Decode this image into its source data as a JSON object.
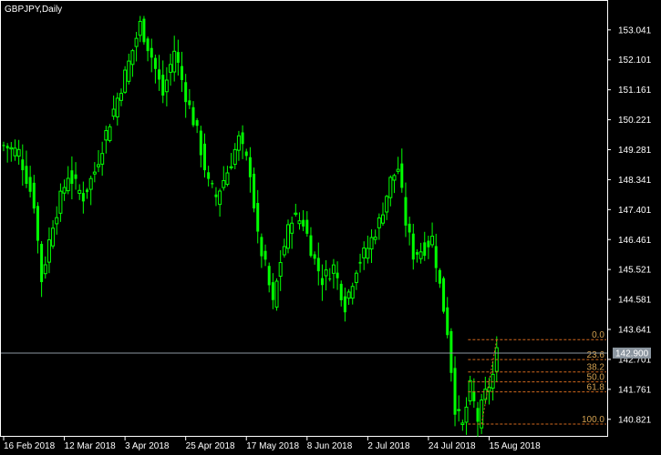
{
  "window": {
    "title": "GBPJPY,Daily"
  },
  "colors": {
    "background": "#000000",
    "candle": "#00ff00",
    "frame": "#ffffff",
    "text": "#ffffff",
    "fibo": "#d2691e",
    "fibo_text": "#d2a050",
    "price_line": "#8c96a0",
    "price_label_bg": "#8c96a0",
    "price_label_text": "#ffffff"
  },
  "chart_data": {
    "type": "candlestick",
    "symbol": "GBPJPY",
    "timeframe": "Daily",
    "ylim": [
      140.3,
      153.95
    ],
    "y_ticks": [
      "153.041",
      "152.101",
      "151.161",
      "150.221",
      "149.281",
      "148.341",
      "147.401",
      "146.461",
      "145.521",
      "144.581",
      "143.641",
      "142.701",
      "141.761",
      "140.821"
    ],
    "x_ticks": [
      "16 Feb 2018",
      "12 Mar 2018",
      "3 Apr 2018",
      "25 Apr 2018",
      "17 May 2018",
      "8 Jun 2018",
      "2 Jul 2018",
      "24 Jul 2018",
      "15 Aug 2018"
    ],
    "x_tick_index": [
      0,
      16,
      32,
      48,
      64,
      80,
      96,
      112,
      128
    ],
    "current_price": "142.900",
    "close_path": [
      [
        0,
        149.4
      ],
      [
        4,
        149.2
      ],
      [
        8,
        147.6
      ],
      [
        10,
        145.2
      ],
      [
        13,
        147.0
      ],
      [
        17,
        148.5
      ],
      [
        21,
        147.8
      ],
      [
        24,
        148.6
      ],
      [
        27,
        149.8
      ],
      [
        30,
        150.9
      ],
      [
        33,
        152.0
      ],
      [
        36,
        153.2
      ],
      [
        39,
        152.2
      ],
      [
        42,
        151.0
      ],
      [
        45,
        152.4
      ],
      [
        48,
        151.0
      ],
      [
        51,
        149.8
      ],
      [
        54,
        148.2
      ],
      [
        56,
        147.8
      ],
      [
        59,
        148.6
      ],
      [
        62,
        149.6
      ],
      [
        65,
        148.6
      ],
      [
        67,
        146.5
      ],
      [
        69,
        145.6
      ],
      [
        71,
        144.4
      ],
      [
        73,
        145.8
      ],
      [
        76,
        147.2
      ],
      [
        79,
        147.0
      ],
      [
        82,
        145.8
      ],
      [
        84,
        145.2
      ],
      [
        87,
        145.6
      ],
      [
        90,
        144.4
      ],
      [
        93,
        145.6
      ],
      [
        96,
        146.2
      ],
      [
        99,
        147.0
      ],
      [
        102,
        148.3
      ],
      [
        104,
        148.7
      ],
      [
        106,
        147.0
      ],
      [
        108,
        146.0
      ],
      [
        111,
        146.2
      ],
      [
        113,
        146.5
      ],
      [
        115,
        145.0
      ],
      [
        117,
        143.6
      ],
      [
        119,
        141.2
      ],
      [
        121,
        140.6
      ],
      [
        123,
        141.8
      ],
      [
        125,
        140.8
      ],
      [
        127,
        141.6
      ],
      [
        129,
        142.2
      ],
      [
        130,
        142.9
      ]
    ],
    "fibonacci": {
      "high": 143.32,
      "low": 140.67,
      "levels": [
        {
          "label": "0.0",
          "ratio": 0.0
        },
        {
          "label": "23.6",
          "ratio": 0.236
        },
        {
          "label": "38.2",
          "ratio": 0.382
        },
        {
          "label": "50.0",
          "ratio": 0.5
        },
        {
          "label": "61.8",
          "ratio": 0.618
        },
        {
          "label": "100.0",
          "ratio": 1.0
        }
      ]
    }
  }
}
